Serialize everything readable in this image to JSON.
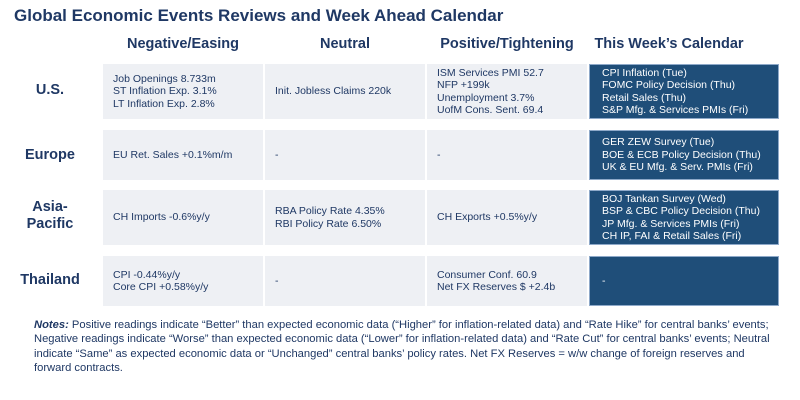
{
  "title": "Global Economic Events Reviews and Week Ahead Calendar",
  "columns": [
    "Negative/Easing",
    "Neutral",
    "Positive/Tightening",
    "This Week’s Calendar"
  ],
  "rows": [
    {
      "region": "U.S.",
      "negative": [
        "Job Openings 8.733m",
        "ST Inflation Exp. 3.1%",
        "LT Inflation Exp. 2.8%"
      ],
      "neutral": [
        "Init. Jobless Claims 220k"
      ],
      "positive": [
        "ISM Services PMI 52.7",
        "NFP +199k",
        "Unemployment 3.7%",
        "UofM Cons. Sent. 69.4"
      ],
      "calendar": [
        "CPI Inflation (Tue)",
        "FOMC Policy Decision (Thu)",
        "Retail Sales (Thu)",
        "S&P Mfg. & Services PMIs (Fri)"
      ]
    },
    {
      "region": "Europe",
      "negative": [
        "EU Ret. Sales +0.1%m/m"
      ],
      "neutral": [
        "-"
      ],
      "positive": [
        "-"
      ],
      "calendar": [
        "GER ZEW Survey (Tue)",
        "BOE & ECB Policy Decision (Thu)",
        "UK & EU Mfg. & Serv. PMIs (Fri)"
      ]
    },
    {
      "region_lines": [
        "Asia-",
        "Pacific"
      ],
      "negative": [
        "CH Imports -0.6%y/y"
      ],
      "neutral": [
        "RBA Policy Rate 4.35%",
        "RBI Policy Rate 6.50%"
      ],
      "positive": [
        "CH Exports +0.5%y/y"
      ],
      "calendar": [
        "BOJ Tankan Survey (Wed)",
        "BSP & CBC Policy Decision (Thu)",
        "JP Mfg. & Services PMIs (Fri)",
        "CH IP, FAI & Retail Sales (Fri)"
      ]
    },
    {
      "region": "Thailand",
      "negative": [
        "CPI -0.44%y/y",
        "Core CPI +0.58%y/y"
      ],
      "neutral": [
        "-"
      ],
      "positive": [
        "Consumer Conf. 60.9",
        "Net FX Reserves $ +2.4b"
      ],
      "calendar": [
        "-"
      ]
    }
  ],
  "notes": {
    "label": "Notes:",
    "text": " Positive readings indicate “Better” than expected economic data (“Higher” for inflation-related data) and “Rate Hike” for central banks’ events; Negative readings indicate “Worse” than expected economic data (“Lower” for inflation-related data) and “Rate Cut” for central banks’ events; Neutral indicate “Same” as expected economic data or “Unchanged” central banks’ policy rates. Net FX Reserves = w/w change of foreign reserves and forward contracts."
  }
}
